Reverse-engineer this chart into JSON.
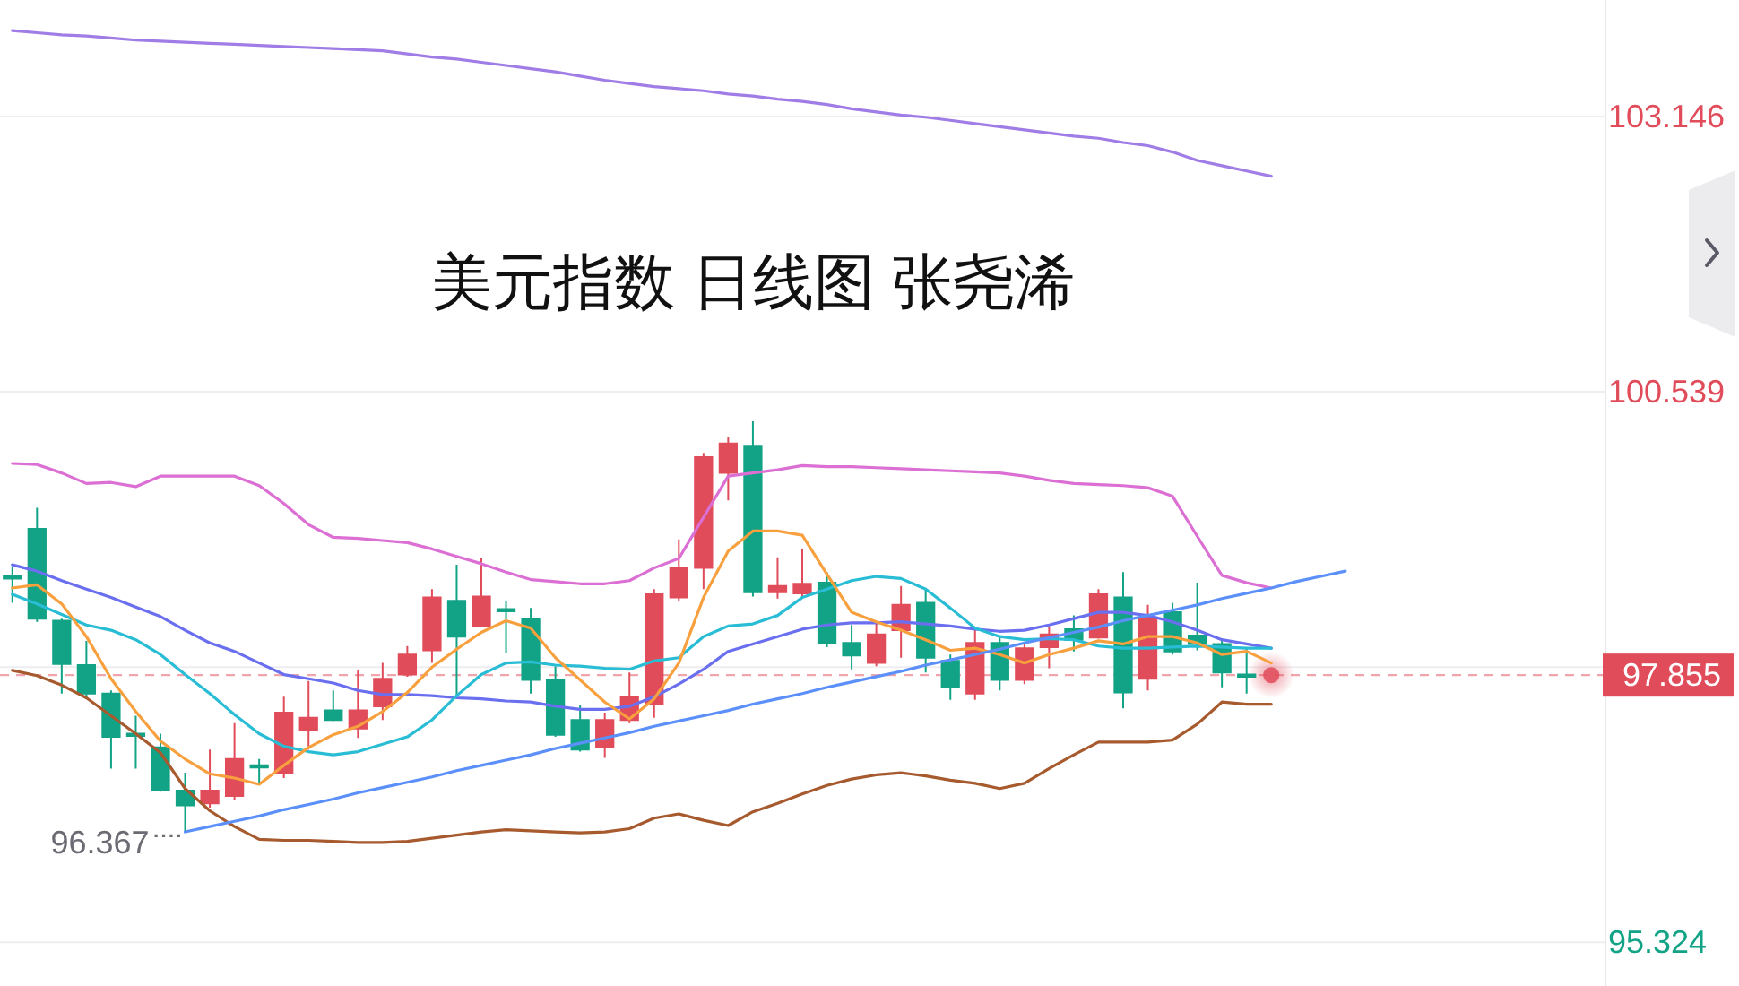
{
  "chart_data": {
    "type": "candlestick",
    "title": "美元指数 日线图 张尧浠",
    "categories": [
      null,
      null,
      null,
      null,
      null,
      null,
      null,
      null,
      null,
      null,
      null,
      null,
      null,
      null,
      null,
      null,
      null,
      null,
      null,
      null,
      null,
      null,
      null,
      null,
      null,
      null,
      null,
      null,
      null,
      null,
      null,
      null,
      null,
      null,
      null,
      null,
      null,
      null,
      null,
      null,
      null,
      null,
      null,
      null,
      null,
      null,
      null,
      null,
      null,
      null,
      null,
      null,
      null,
      null,
      null,
      null,
      null,
      null,
      null,
      null,
      null,
      null,
      null,
      null,
      null
    ],
    "ohlc": [
      [
        98.79,
        98.88,
        98.54,
        98.77
      ],
      [
        99.24,
        99.44,
        98.36,
        98.39
      ],
      [
        98.37,
        98.39,
        97.68,
        97.96
      ],
      [
        97.95,
        98.18,
        97.64,
        97.68
      ],
      [
        97.68,
        97.71,
        96.97,
        97.27
      ],
      [
        97.3,
        97.47,
        96.97,
        97.28
      ],
      [
        97.17,
        97.3,
        96.75,
        96.77
      ],
      [
        96.76,
        96.93,
        96.367,
        96.62
      ],
      [
        96.64,
        97.15,
        96.6,
        96.76
      ],
      [
        96.71,
        97.4,
        96.67,
        97.06
      ],
      [
        97.0,
        97.06,
        96.83,
        96.98
      ],
      [
        96.93,
        97.65,
        96.88,
        97.5
      ],
      [
        97.33,
        97.8,
        97.15,
        97.45
      ],
      [
        97.52,
        97.71,
        97.42,
        97.43
      ],
      [
        97.35,
        97.9,
        97.26,
        97.52
      ],
      [
        97.56,
        97.97,
        97.43,
        97.82
      ],
      [
        97.86,
        98.13,
        97.84,
        98.05
      ],
      [
        98.09,
        98.67,
        97.97,
        98.59
      ],
      [
        98.56,
        98.9,
        97.65,
        98.22
      ],
      [
        98.32,
        98.96,
        98.31,
        98.6
      ],
      [
        98.48,
        98.56,
        98.06,
        98.46
      ],
      [
        98.39,
        98.49,
        97.68,
        97.81
      ],
      [
        97.81,
        97.94,
        97.27,
        97.29
      ],
      [
        97.43,
        97.57,
        97.13,
        97.15
      ],
      [
        97.17,
        97.5,
        97.07,
        97.43
      ],
      [
        97.43,
        97.88,
        97.4,
        97.65
      ],
      [
        97.58,
        98.67,
        97.45,
        98.62
      ],
      [
        98.59,
        99.14,
        98.56,
        98.87
      ],
      [
        98.87,
        99.96,
        98.67,
        99.92
      ],
      [
        99.77,
        100.11,
        99.51,
        100.05
      ],
      [
        100.02,
        100.26,
        98.6,
        98.64
      ],
      [
        98.64,
        98.97,
        98.58,
        98.7
      ],
      [
        98.63,
        99.05,
        98.6,
        98.72
      ],
      [
        98.73,
        98.83,
        98.12,
        98.16
      ],
      [
        98.16,
        98.33,
        97.91,
        98.04
      ],
      [
        97.97,
        98.35,
        97.94,
        98.24
      ],
      [
        98.28,
        98.7,
        98.02,
        98.52
      ],
      [
        98.54,
        98.67,
        97.88,
        98.02
      ],
      [
        97.99,
        98.05,
        97.62,
        97.74
      ],
      [
        97.68,
        98.28,
        97.62,
        98.16
      ],
      [
        98.16,
        98.22,
        97.71,
        97.81
      ],
      [
        97.81,
        98.16,
        97.77,
        98.11
      ],
      [
        98.12,
        98.31,
        97.92,
        98.24
      ],
      [
        98.29,
        98.42,
        98.08,
        98.19
      ],
      [
        98.21,
        98.67,
        98.2,
        98.62
      ],
      [
        98.59,
        98.83,
        97.54,
        97.69
      ],
      [
        97.82,
        98.52,
        97.71,
        98.4
      ],
      [
        98.45,
        98.54,
        98.05,
        98.08
      ],
      [
        98.23,
        98.73,
        98.09,
        98.15
      ],
      [
        98.15,
        98.19,
        97.74,
        97.88
      ],
      [
        97.86,
        98.11,
        97.68,
        97.84
      ],
      null,
      null,
      null,
      null,
      null,
      null,
      null,
      null,
      null,
      null,
      null,
      null,
      null,
      null
    ],
    "colors": [
      "#12a386",
      "#12a386",
      "#12a386",
      "#12a386",
      "#12a386",
      "#12a386",
      "#12a386",
      "#12a386",
      "#e14c5a",
      "#e14c5a",
      "#12a386",
      "#e14c5a",
      "#e14c5a",
      "#12a386",
      "#e14c5a",
      "#e14c5a",
      "#e14c5a",
      "#e14c5a",
      "#12a386",
      "#e14c5a",
      "#12a386",
      "#12a386",
      "#12a386",
      "#12a386",
      "#e14c5a",
      "#e14c5a",
      "#e14c5a",
      "#e14c5a",
      "#e14c5a",
      "#e14c5a",
      "#12a386",
      "#e14c5a",
      "#e14c5a",
      "#12a386",
      "#12a386",
      "#e14c5a",
      "#e14c5a",
      "#12a386",
      "#12a386",
      "#e14c5a",
      "#12a386",
      "#e14c5a",
      "#e14c5a",
      "#12a386",
      "#e14c5a",
      "#12a386",
      "#e14c5a",
      "#12a386",
      "#12a386",
      "#12a386",
      "#12a386",
      null,
      null,
      null,
      null,
      null,
      null,
      null,
      null,
      null,
      null,
      null,
      null,
      null,
      null
    ],
    "series": [
      {
        "type": "line",
        "color": "#dc6fd4",
        "values": [
          99.86,
          99.85,
          99.77,
          99.67,
          99.68,
          99.64,
          99.74,
          99.74,
          99.74,
          99.74,
          99.65,
          99.48,
          99.28,
          99.16,
          99.15,
          99.13,
          99.11,
          99.05,
          98.98,
          98.91,
          98.83,
          98.76,
          98.74,
          98.72,
          98.72,
          98.75,
          98.87,
          98.96,
          99.35,
          99.74,
          99.77,
          99.8,
          99.84,
          99.83,
          99.83,
          99.82,
          99.81,
          99.8,
          99.79,
          99.78,
          99.77,
          99.74,
          99.7,
          99.67,
          99.66,
          99.65,
          99.63,
          99.55,
          99.17,
          98.8,
          98.73,
          98.68,
          null,
          null,
          null,
          null,
          null,
          null,
          null,
          null,
          null,
          null,
          null,
          null,
          null
        ]
      },
      {
        "type": "line",
        "color": "#a65a2e",
        "values": [
          97.9,
          97.85,
          97.76,
          97.64,
          97.47,
          97.3,
          97.12,
          96.78,
          96.57,
          96.42,
          96.3,
          96.29,
          96.29,
          96.28,
          96.27,
          96.27,
          96.28,
          96.31,
          96.34,
          96.37,
          96.39,
          96.38,
          96.37,
          96.36,
          96.37,
          96.4,
          96.5,
          96.54,
          96.48,
          96.43,
          96.56,
          96.64,
          96.73,
          96.81,
          96.87,
          96.91,
          96.93,
          96.9,
          96.86,
          96.83,
          96.78,
          96.83,
          96.97,
          97.1,
          97.22,
          97.22,
          97.22,
          97.24,
          97.39,
          97.6,
          97.58,
          97.58,
          null,
          null,
          null,
          null,
          null,
          null,
          null,
          null,
          null,
          null,
          null,
          null,
          null
        ]
      },
      {
        "type": "line",
        "color": "#a07ce6",
        "values": [
          103.96,
          103.94,
          103.92,
          103.91,
          103.89,
          103.87,
          103.86,
          103.85,
          103.84,
          103.83,
          103.82,
          103.81,
          103.8,
          103.79,
          103.78,
          103.77,
          103.74,
          103.71,
          103.69,
          103.66,
          103.63,
          103.6,
          103.57,
          103.53,
          103.49,
          103.46,
          103.43,
          103.41,
          103.39,
          103.36,
          103.34,
          103.31,
          103.29,
          103.26,
          103.22,
          103.19,
          103.16,
          103.14,
          103.11,
          103.08,
          103.05,
          103.02,
          102.99,
          102.96,
          102.94,
          102.9,
          102.87,
          102.81,
          102.73,
          102.68,
          102.63,
          102.58,
          null,
          null,
          null,
          null,
          null,
          null,
          null,
          null,
          null,
          null,
          null,
          null,
          null
        ]
      },
      {
        "type": "line",
        "color": "#6a6ff0",
        "values": [
          98.9,
          98.84,
          98.75,
          98.67,
          98.59,
          98.5,
          98.41,
          98.28,
          98.16,
          98.08,
          97.97,
          97.86,
          97.82,
          97.78,
          97.71,
          97.67,
          97.67,
          97.66,
          97.64,
          97.63,
          97.61,
          97.6,
          97.56,
          97.53,
          97.53,
          97.56,
          97.65,
          97.77,
          97.91,
          98.08,
          98.15,
          98.22,
          98.29,
          98.33,
          98.35,
          98.35,
          98.36,
          98.34,
          98.32,
          98.29,
          98.27,
          98.28,
          98.33,
          98.39,
          98.45,
          98.45,
          98.42,
          98.36,
          98.28,
          98.19,
          98.15,
          98.11,
          null,
          null,
          null,
          null,
          null,
          null,
          null,
          null,
          null,
          null,
          null,
          null,
          null
        ]
      },
      {
        "type": "line",
        "color": "#29bdd5",
        "values": [
          98.62,
          98.53,
          98.43,
          98.33,
          98.28,
          98.19,
          98.05,
          97.86,
          97.68,
          97.48,
          97.3,
          97.18,
          97.13,
          97.1,
          97.13,
          97.2,
          97.27,
          97.43,
          97.66,
          97.86,
          97.97,
          97.98,
          97.95,
          97.94,
          97.92,
          97.91,
          97.99,
          98.02,
          98.22,
          98.32,
          98.34,
          98.42,
          98.59,
          98.67,
          98.75,
          98.79,
          98.77,
          98.67,
          98.49,
          98.3,
          98.22,
          98.19,
          98.2,
          98.19,
          98.13,
          98.11,
          98.11,
          98.12,
          98.13,
          98.12,
          98.11,
          98.11,
          null,
          null,
          null,
          null,
          null,
          null,
          null,
          null,
          null,
          null,
          null,
          null,
          null
        ]
      },
      {
        "type": "line",
        "color": "#f8a03e",
        "values": [
          98.68,
          98.71,
          98.53,
          98.22,
          97.82,
          97.51,
          97.23,
          97.06,
          96.92,
          96.88,
          96.82,
          97.0,
          97.17,
          97.29,
          97.37,
          97.51,
          97.69,
          97.93,
          98.1,
          98.26,
          98.37,
          98.3,
          98.02,
          97.81,
          97.6,
          97.44,
          97.63,
          97.97,
          98.59,
          99.03,
          99.22,
          99.22,
          99.18,
          98.81,
          98.45,
          98.36,
          98.28,
          98.19,
          98.09,
          98.11,
          98.05,
          97.97,
          98.05,
          98.11,
          98.18,
          98.15,
          98.22,
          98.22,
          98.16,
          98.05,
          98.08,
          97.97,
          null,
          null,
          null,
          null,
          null,
          null,
          null,
          null,
          null,
          null,
          null,
          null,
          null
        ]
      },
      {
        "type": "line",
        "color": "#5b8ff9",
        "values": [
          null,
          null,
          null,
          null,
          null,
          null,
          null,
          96.37,
          96.42,
          96.47,
          96.52,
          96.58,
          96.63,
          96.68,
          96.74,
          96.79,
          96.84,
          96.89,
          96.95,
          97.0,
          97.05,
          97.1,
          97.16,
          97.21,
          97.26,
          97.31,
          97.37,
          97.42,
          97.47,
          97.52,
          97.58,
          97.63,
          97.68,
          97.74,
          97.79,
          97.84,
          97.89,
          97.95,
          98.0,
          98.05,
          98.1,
          98.16,
          98.21,
          98.26,
          98.31,
          98.37,
          98.42,
          98.47,
          98.52,
          98.58,
          98.63,
          98.68,
          98.74,
          98.79,
          98.84,
          null,
          null,
          null,
          null,
          null,
          null,
          null,
          null,
          null,
          null
        ]
      }
    ],
    "ylim": [
      94.91,
      104.25
    ],
    "yticks": [
      95.324,
      {
        "value": 97.931,
        "label": null
      },
      100.539,
      103.146
    ],
    "grid": "y",
    "tick_labels": "y",
    "ref_lines": [
      {
        "axis": "y",
        "value": 97.855,
        "label": "97.855",
        "color": "#e14c5a",
        "line_style": "dashed"
      }
    ],
    "annotations": [
      "96.367"
    ]
  }
}
